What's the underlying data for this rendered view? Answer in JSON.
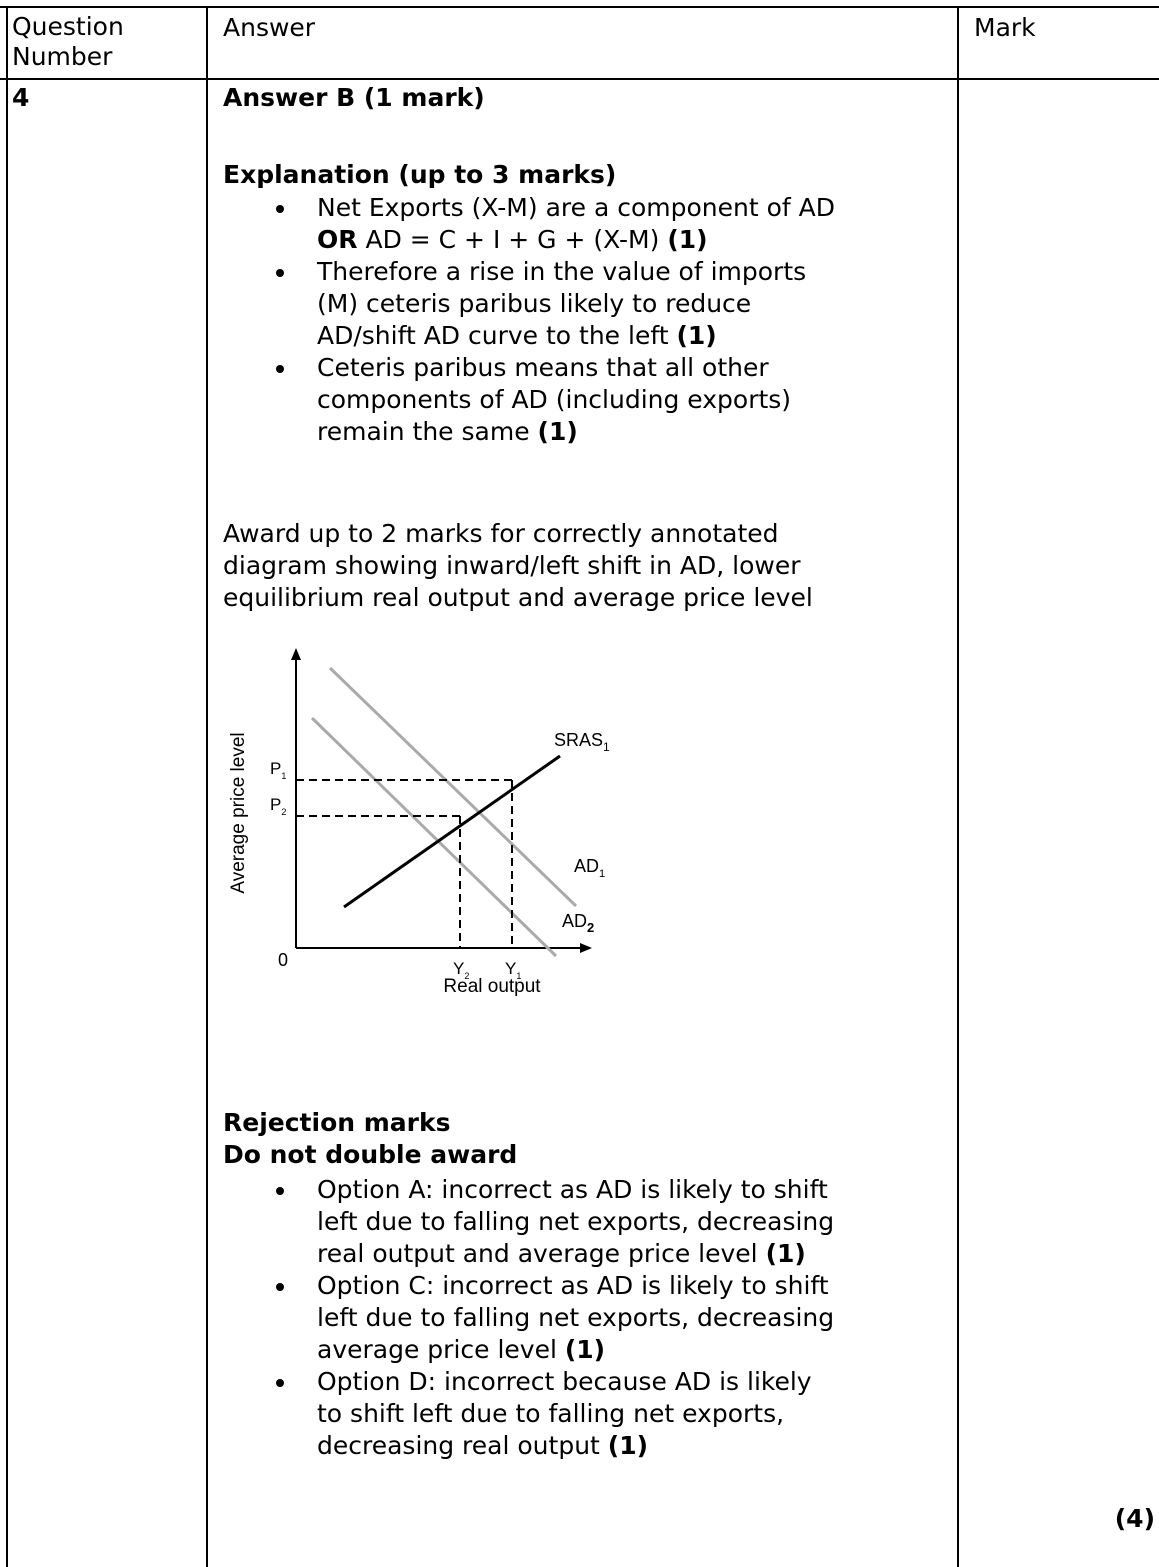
{
  "header": {
    "question_number": "Question Number",
    "answer": "Answer",
    "mark": "Mark"
  },
  "row": {
    "number": "4",
    "answer_heading": "Answer B (1 mark)",
    "explanation_heading": "Explanation (up to 3 marks)",
    "explanation_points": [
      {
        "line1_text": "Net Exports (X-M) are a component of AD",
        "line2_bold": "OR",
        "line2_text": " AD = C + I + G + (X-M) ",
        "line2_mark": "(1)"
      },
      {
        "line1": "Therefore a rise in the value of imports",
        "line2": "(M) ceteris paribus likely to reduce",
        "line3": "AD/shift AD curve to the left ",
        "mark": "(1)"
      },
      {
        "line1": "Ceteris paribus means that all other",
        "line2": "components of AD (including exports)",
        "line3": "remain the same ",
        "mark": "(1)"
      }
    ],
    "diagram_instruction": [
      "Award up to 2 marks for correctly annotated",
      "diagram showing inward/left shift in AD, lower",
      "equilibrium real output and average price level"
    ],
    "rejection_heading": "Rejection marks",
    "rejection_subheading": "Do not double award",
    "rejection_points": [
      {
        "line1": "Option A: incorrect as AD is likely to shift",
        "line2": "left due to falling net exports, decreasing",
        "line3": "real output and average price level ",
        "mark": "(1)"
      },
      {
        "line1": "Option C: incorrect as AD is likely to shift",
        "line2": "left due to falling net exports, decreasing",
        "line3": "average price level ",
        "mark": "(1)"
      },
      {
        "line1": "Option D: incorrect because AD is likely",
        "line2": "to shift left due to falling net exports,",
        "line3": "decreasing real output ",
        "mark": "(1)"
      }
    ],
    "total_mark": "(4)"
  },
  "diagram": {
    "y_axis_label": "Average price level",
    "x_axis_label": "Real output",
    "origin": "0",
    "curve_sras": "SRAS",
    "curve_sras_sub": "1",
    "curve_ad1": "AD",
    "curve_ad1_sub": "1",
    "curve_ad2": "AD",
    "curve_ad2_sub": "2",
    "p1": "P",
    "p1_sub": "1",
    "p2": "P",
    "p2_sub": "2",
    "y1": "Y",
    "y1_sub": "1",
    "y2": "Y",
    "y2_sub": "2",
    "colors": {
      "ad_curves": "#aaaaaa",
      "sras": "#000000"
    }
  }
}
